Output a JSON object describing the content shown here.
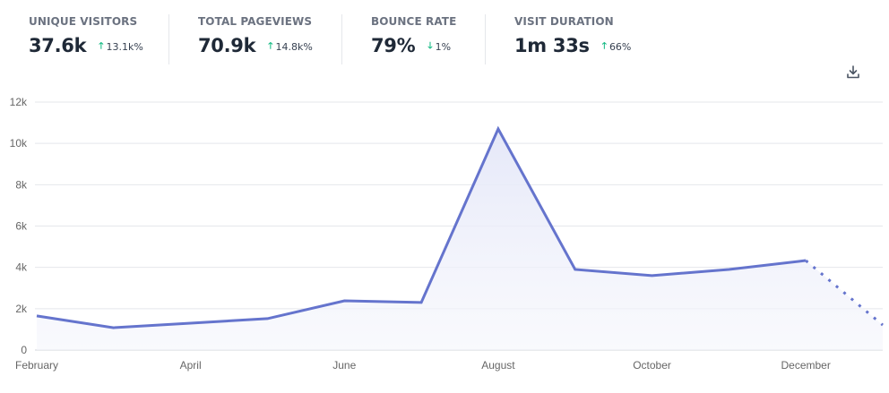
{
  "stats": [
    {
      "label": "UNIQUE VISITORS",
      "value": "37.6k",
      "change": "13.1k%",
      "direction": "up"
    },
    {
      "label": "TOTAL PAGEVIEWS",
      "value": "70.9k",
      "change": "14.8k%",
      "direction": "up"
    },
    {
      "label": "BOUNCE RATE",
      "value": "79%",
      "change": "1%",
      "direction": "down"
    },
    {
      "label": "VISIT DURATION",
      "value": "1m 33s",
      "change": "66%",
      "direction": "up"
    }
  ],
  "icons": {
    "download": "download-icon",
    "arrow_up": "arrow-up-icon",
    "arrow_down": "arrow-down-icon"
  },
  "colors": {
    "line": "#6574cd",
    "fill_top": "#e4e7f8",
    "positive": "#10b981",
    "grid": "#e5e7eb"
  },
  "chart_data": {
    "type": "area",
    "title": "",
    "xlabel": "",
    "ylabel": "",
    "x": [
      "February",
      "March",
      "April",
      "May",
      "June",
      "July",
      "August",
      "September",
      "October",
      "November",
      "December",
      "January"
    ],
    "x_tick_labels": [
      "February",
      "April",
      "June",
      "August",
      "October",
      "December"
    ],
    "series": [
      {
        "name": "Unique visitors",
        "values": [
          1650,
          1080,
          1300,
          1520,
          2380,
          2300,
          10700,
          3900,
          3600,
          3900,
          4330,
          1210
        ],
        "incomplete_last_point": true
      }
    ],
    "ylim": [
      0,
      12000
    ],
    "y_ticks": [
      0,
      2000,
      4000,
      6000,
      8000,
      10000,
      12000
    ],
    "y_tick_labels": [
      "0",
      "2k",
      "4k",
      "6k",
      "8k",
      "10k",
      "12k"
    ],
    "grid": true,
    "legend": "none"
  }
}
